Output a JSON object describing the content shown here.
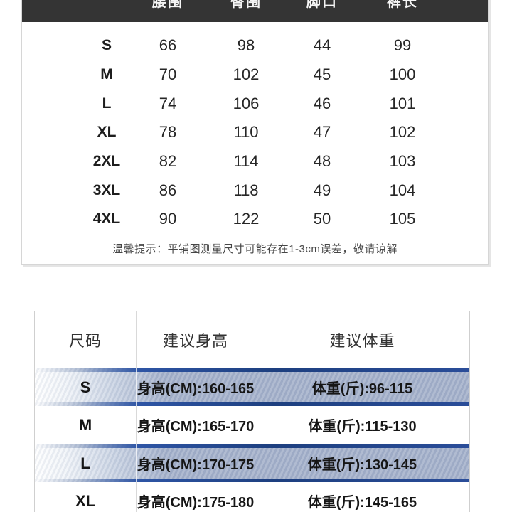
{
  "chart_data": [
    {
      "type": "table",
      "name": "flat-measurement-size-table",
      "columns": [
        "",
        "腰围",
        "臀围",
        "脚口",
        "裤长"
      ],
      "rows": [
        [
          "S",
          "66",
          "98",
          "44",
          "99"
        ],
        [
          "M",
          "70",
          "102",
          "45",
          "100"
        ],
        [
          "L",
          "74",
          "106",
          "46",
          "101"
        ],
        [
          "XL",
          "78",
          "110",
          "47",
          "102"
        ],
        [
          "2XL",
          "82",
          "114",
          "48",
          "103"
        ],
        [
          "3XL",
          "86",
          "118",
          "49",
          "104"
        ],
        [
          "4XL",
          "90",
          "122",
          "50",
          "105"
        ]
      ],
      "note": "温馨提示：平铺图测量尺寸可能存在1-3cm误差，敬请谅解",
      "header_bg": "#343434",
      "header_text_color": "#f5f5f5"
    },
    {
      "type": "table",
      "name": "recommended-height-weight-table",
      "columns": [
        "尺码",
        "建议身高",
        "建议体重"
      ],
      "rows": [
        [
          "S",
          "身高(CM):160-165",
          "体重(斤):96-115"
        ],
        [
          "M",
          "身高(CM):165-170",
          "体重(斤):115-130"
        ],
        [
          "L",
          "身高(CM):170-175",
          "体重(斤):130-145"
        ],
        [
          "XL",
          "身高(CM):175-180",
          "体重(斤):145-165"
        ]
      ],
      "highlighted_rows": [
        "S",
        "L"
      ],
      "highlight_body_color": "#a7b3cc",
      "highlight_band_color": "#1d3f7f",
      "border_color": "#cfcfcf"
    }
  ]
}
